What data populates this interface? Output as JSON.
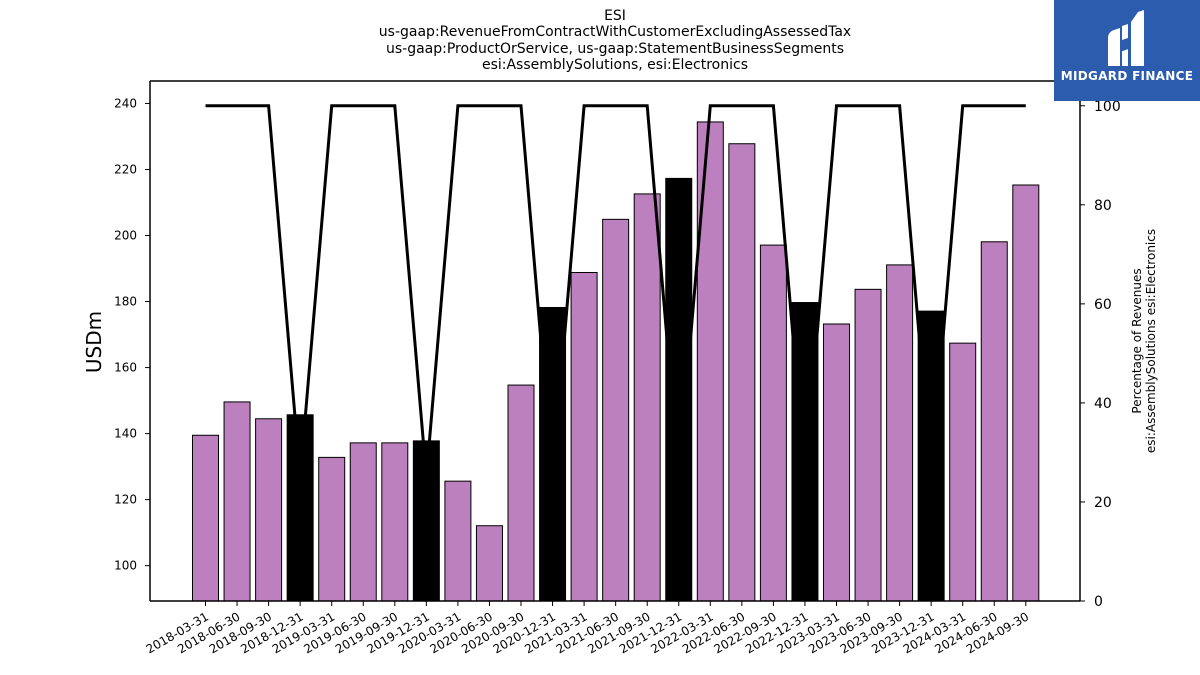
{
  "title_lines": [
    "ESI",
    "us-gaap:RevenueFromContractWithCustomerExcludingAssessedTax",
    "us-gaap:ProductOrService, us-gaap:StatementBusinessSegments",
    "esi:AssemblySolutions, esi:Electronics"
  ],
  "logo": {
    "text": "MIDGARD FINANCE",
    "icon": "midgard-logo-icon",
    "background": "#2b5cad"
  },
  "chart_data": {
    "type": "bar",
    "categories": [
      "2018-03-31",
      "2018-06-30",
      "2018-09-30",
      "2018-12-31",
      "2019-03-31",
      "2019-06-30",
      "2019-09-30",
      "2019-12-31",
      "2020-03-31",
      "2020-06-30",
      "2020-09-30",
      "2020-12-31",
      "2021-03-31",
      "2021-06-30",
      "2021-09-30",
      "2021-12-31",
      "2022-03-31",
      "2022-06-30",
      "2022-09-30",
      "2022-12-31",
      "2023-03-31",
      "2023-06-30",
      "2023-09-30",
      "2023-12-31",
      "2024-03-31",
      "2024-06-30",
      "2024-09-30"
    ],
    "values": [
      139.5,
      149.6,
      144.5,
      145.7,
      132.8,
      137.2,
      137.2,
      137.8,
      125.6,
      112.1,
      154.7,
      178.2,
      188.8,
      204.9,
      212.6,
      217.3,
      234.4,
      227.8,
      197.1,
      179.7,
      173.2,
      183.7,
      191.1,
      177.1,
      167.4,
      198.1,
      215.3
    ],
    "bar_colors_note": "purple for quarterly periods, black for year-end periods",
    "highlight": [
      false,
      false,
      false,
      true,
      false,
      false,
      false,
      true,
      false,
      false,
      false,
      true,
      false,
      false,
      false,
      true,
      false,
      false,
      false,
      true,
      false,
      false,
      false,
      true,
      false,
      false,
      false
    ],
    "ylabel": "USDm",
    "ylim": [
      89.3,
      246.8
    ],
    "yticks": [
      100,
      120,
      140,
      160,
      180,
      200,
      220,
      240
    ],
    "secondary_series": {
      "type": "line",
      "ylabel_lines": [
        "Percentage of Revenues",
        "esi:AssemblySolutions esi:Electronics"
      ],
      "values": [
        100,
        100,
        100,
        25,
        100,
        100,
        100,
        25,
        100,
        100,
        100,
        25,
        100,
        100,
        100,
        25,
        100,
        100,
        100,
        25,
        100,
        100,
        100,
        25,
        100,
        100,
        100
      ],
      "ylim": [
        0,
        105
      ],
      "yticks": [
        0,
        20,
        40,
        60,
        80,
        100
      ]
    },
    "colors": {
      "bar": "#bb80bd",
      "bar_highlight": "#000000",
      "line": "#000000"
    },
    "grid": false
  }
}
